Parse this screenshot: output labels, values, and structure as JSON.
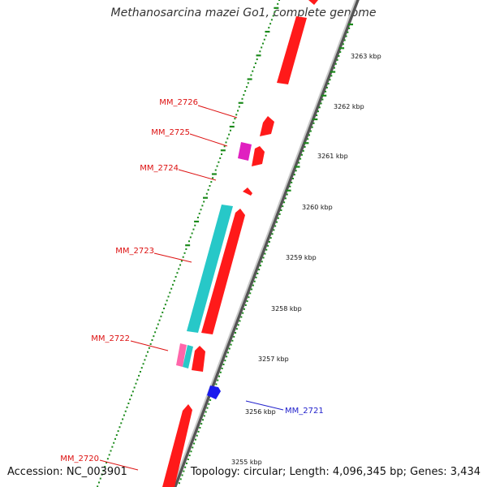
{
  "title": "Methanosarcina mazei Go1, complete genome",
  "footer": {
    "accession": "Accession: NC_003901",
    "topology": "Topology: circular; Length: 4,096,345 bp; Genes: 3,434"
  },
  "colors": {
    "backbone": "#8c8c8c",
    "tick": "#1a8a1a",
    "forward_gene": "#ff1a1a",
    "reverse_gene": "#1a1aee",
    "rna_gene": "#27c8c8",
    "pink_gene": "#ff66aa",
    "magenta_gene": "#e020c0",
    "label_red": "#dd1111",
    "label_blue": "#2222cc",
    "kbp_label": "#111111"
  },
  "scale_labels": [
    "3263 kbp",
    "3262 kbp",
    "3261 kbp",
    "3260 kbp",
    "3259 kbp",
    "3258 kbp",
    "3257 kbp",
    "3256 kbp",
    "3255 kbp"
  ],
  "gene_labels": [
    {
      "text": "MM_2726",
      "color": "red"
    },
    {
      "text": "MM_2725",
      "color": "red"
    },
    {
      "text": "MM_2724",
      "color": "red"
    },
    {
      "text": "MM_2723",
      "color": "red"
    },
    {
      "text": "MM_2722",
      "color": "red"
    },
    {
      "text": "MM_2721",
      "color": "blue"
    },
    {
      "text": "MM_2720",
      "color": "red"
    }
  ]
}
